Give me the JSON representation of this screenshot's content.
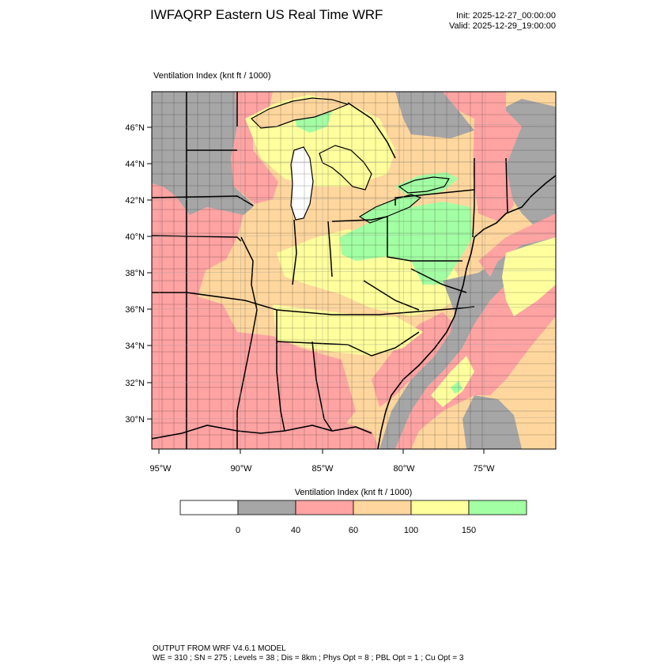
{
  "title": "IWFAQRP Eastern US Real Time WRF",
  "init_label": "Init: 2025-12-27_00:00:00",
  "valid_label": "Valid: 2025-12-29_19:00:00",
  "field_label": "Ventilation Index   (knt ft / 1000)",
  "lat_labels": [
    "46°N",
    "44°N",
    "42°N",
    "40°N",
    "38°N",
    "36°N",
    "34°N",
    "32°N",
    "30°N"
  ],
  "lon_labels": [
    "95°W",
    "90°W",
    "85°W",
    "80°W",
    "75°W"
  ],
  "legend": {
    "title": "Ventilation Index  (knt ft / 1000)",
    "colors": [
      "#ffffff",
      "#a6a6a6",
      "#ffa3a3",
      "#ffd79e",
      "#ffff9e",
      "#a3ffa3"
    ],
    "tick_labels": [
      "0",
      "40",
      "60",
      "100",
      "150"
    ]
  },
  "footer": {
    "line1": "OUTPUT FROM WRF V4.6.1 MODEL",
    "line2": "WE = 310 ; SN = 275 ; Levels = 38 ; Dis = 8km ; Phys Opt = 8 ; PBL Opt = 1 ; Cu Opt = 3"
  }
}
